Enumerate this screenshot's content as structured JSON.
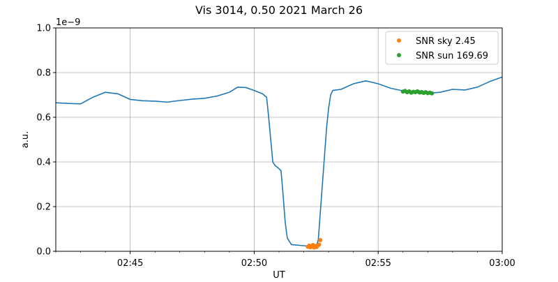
{
  "chart_data": {
    "type": "line",
    "title": "Vis 3014, 0.50 2021 March 26",
    "xlabel": "UT",
    "ylabel": "a.u.",
    "y_offset_label": "1e−9",
    "xlim": [
      "02:42:00",
      "03:00:00"
    ],
    "ylim": [
      0.0,
      1.0
    ],
    "y_scale_factor": 1e-09,
    "grid": true,
    "legend_position": "top-right",
    "x_ticks": [
      "02:45",
      "02:50",
      "02:55",
      "03:00"
    ],
    "y_ticks": [
      "0.0",
      "0.2",
      "0.4",
      "0.6",
      "0.8",
      "1.0"
    ],
    "series": [
      {
        "name": "",
        "kind": "line",
        "color": "#1f77b4",
        "points": [
          [
            "02:42:00",
            0.665
          ],
          [
            "02:42:30",
            0.662
          ],
          [
            "02:43:00",
            0.66
          ],
          [
            "02:43:30",
            0.69
          ],
          [
            "02:44:00",
            0.712
          ],
          [
            "02:44:30",
            0.705
          ],
          [
            "02:45:00",
            0.68
          ],
          [
            "02:45:30",
            0.674
          ],
          [
            "02:46:00",
            0.672
          ],
          [
            "02:46:30",
            0.668
          ],
          [
            "02:47:00",
            0.675
          ],
          [
            "02:47:30",
            0.681
          ],
          [
            "02:48:00",
            0.685
          ],
          [
            "02:48:30",
            0.695
          ],
          [
            "02:49:00",
            0.712
          ],
          [
            "02:49:20",
            0.735
          ],
          [
            "02:49:40",
            0.733
          ],
          [
            "02:50:00",
            0.72
          ],
          [
            "02:50:20",
            0.705
          ],
          [
            "02:50:30",
            0.69
          ],
          [
            "02:50:35",
            0.6
          ],
          [
            "02:50:40",
            0.5
          ],
          [
            "02:50:45",
            0.4
          ],
          [
            "02:50:50",
            0.385
          ],
          [
            "02:51:00",
            0.37
          ],
          [
            "02:51:05",
            0.36
          ],
          [
            "02:51:10",
            0.25
          ],
          [
            "02:51:15",
            0.13
          ],
          [
            "02:51:20",
            0.06
          ],
          [
            "02:51:30",
            0.03
          ],
          [
            "02:52:00",
            0.025
          ],
          [
            "02:52:30",
            0.02
          ],
          [
            "02:52:35",
            0.05
          ],
          [
            "02:52:45",
            0.3
          ],
          [
            "02:52:55",
            0.55
          ],
          [
            "02:53:00",
            0.64
          ],
          [
            "02:53:05",
            0.7
          ],
          [
            "02:53:10",
            0.72
          ],
          [
            "02:53:30",
            0.725
          ],
          [
            "02:54:00",
            0.75
          ],
          [
            "02:54:30",
            0.763
          ],
          [
            "02:55:00",
            0.75
          ],
          [
            "02:55:30",
            0.73
          ],
          [
            "02:56:00",
            0.718
          ],
          [
            "02:56:30",
            0.712
          ],
          [
            "02:57:00",
            0.708
          ],
          [
            "02:57:30",
            0.712
          ],
          [
            "02:58:00",
            0.725
          ],
          [
            "02:58:30",
            0.722
          ],
          [
            "02:59:00",
            0.735
          ],
          [
            "02:59:30",
            0.76
          ],
          [
            "03:00:00",
            0.78
          ]
        ]
      },
      {
        "name": "SNR sky 2.45",
        "kind": "scatter",
        "color": "#ff7f0e",
        "points": [
          [
            "02:52:10",
            0.02
          ],
          [
            "02:52:13",
            0.025
          ],
          [
            "02:52:16",
            0.018
          ],
          [
            "02:52:19",
            0.022
          ],
          [
            "02:52:22",
            0.028
          ],
          [
            "02:52:25",
            0.017
          ],
          [
            "02:52:28",
            0.024
          ],
          [
            "02:52:31",
            0.019
          ],
          [
            "02:52:34",
            0.026
          ],
          [
            "02:52:37",
            0.03
          ],
          [
            "02:52:40",
            0.05
          ]
        ]
      },
      {
        "name": "SNR sun 169.69",
        "kind": "scatter",
        "color": "#2ca02c",
        "points": [
          [
            "02:56:00",
            0.715
          ],
          [
            "02:56:05",
            0.718
          ],
          [
            "02:56:10",
            0.712
          ],
          [
            "02:56:15",
            0.716
          ],
          [
            "02:56:20",
            0.71
          ],
          [
            "02:56:25",
            0.714
          ],
          [
            "02:56:30",
            0.712
          ],
          [
            "02:56:35",
            0.716
          ],
          [
            "02:56:40",
            0.711
          ],
          [
            "02:56:45",
            0.713
          ],
          [
            "02:56:50",
            0.709
          ],
          [
            "02:56:55",
            0.712
          ],
          [
            "02:57:00",
            0.708
          ],
          [
            "02:57:05",
            0.71
          ],
          [
            "02:57:10",
            0.707
          ]
        ]
      }
    ]
  }
}
